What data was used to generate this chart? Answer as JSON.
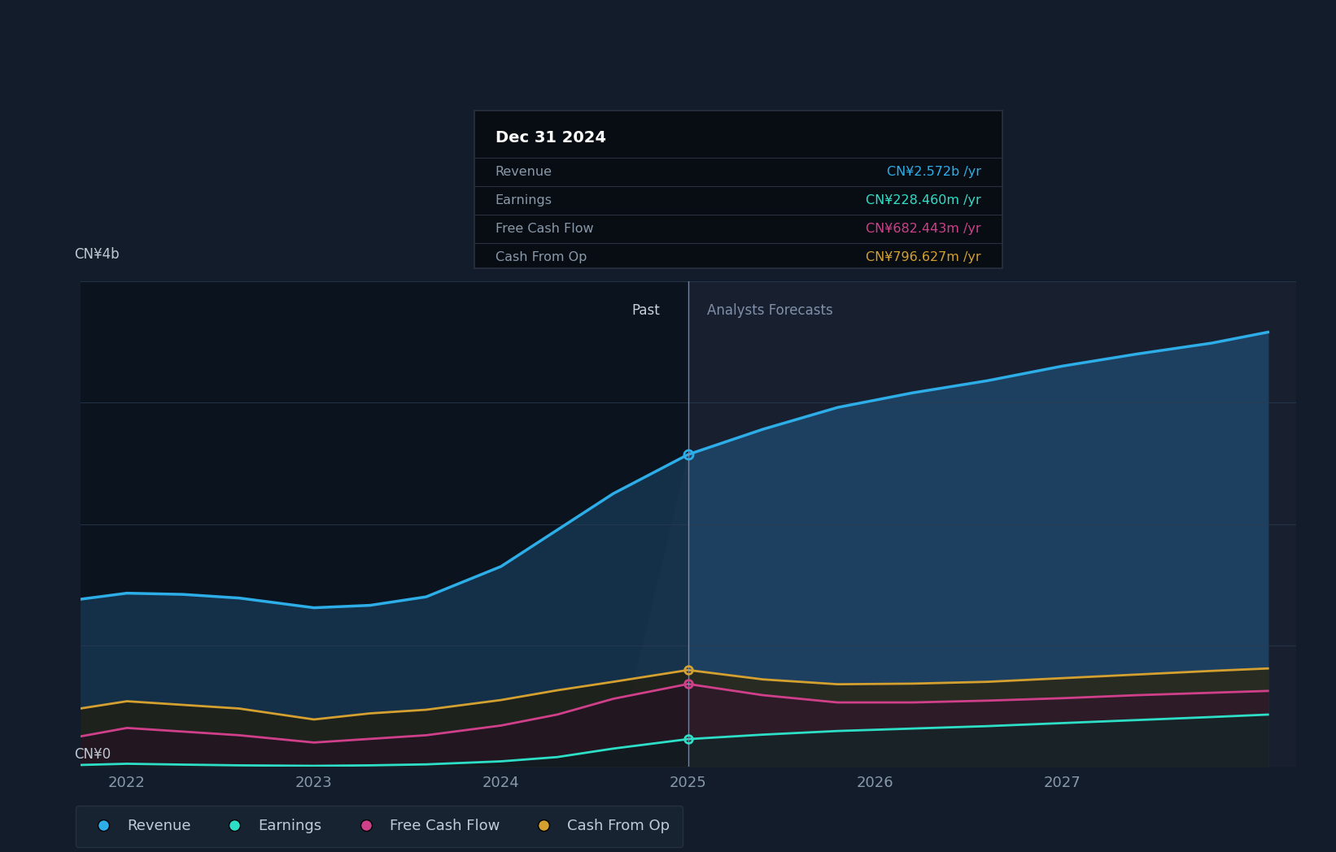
{
  "bg_color": "#131c2b",
  "plot_bg_color": "#182030",
  "past_bg_color": "#0e1824",
  "forecast_bg_color": "#182030",
  "grid_color": "#2a3a50",
  "ylabel_top": "CN¥4b",
  "ylabel_bottom": "CN¥0",
  "x_years": [
    2021.75,
    2022.0,
    2022.3,
    2022.6,
    2023.0,
    2023.3,
    2023.6,
    2024.0,
    2024.3,
    2024.6,
    2025.0,
    2025.4,
    2025.8,
    2026.2,
    2026.6,
    2027.0,
    2027.4,
    2027.8,
    2028.1
  ],
  "revenue": [
    1380,
    1430,
    1420,
    1390,
    1310,
    1330,
    1400,
    1650,
    1950,
    2250,
    2572,
    2780,
    2960,
    3080,
    3180,
    3300,
    3400,
    3490,
    3580
  ],
  "earnings": [
    15,
    25,
    18,
    12,
    8,
    12,
    20,
    45,
    80,
    150,
    228,
    265,
    295,
    315,
    335,
    360,
    385,
    410,
    430
  ],
  "free_cash_flow": [
    250,
    320,
    290,
    260,
    200,
    230,
    260,
    340,
    430,
    560,
    682,
    590,
    530,
    530,
    545,
    565,
    590,
    610,
    625
  ],
  "cash_from_op": [
    480,
    540,
    510,
    480,
    390,
    440,
    470,
    550,
    630,
    700,
    797,
    720,
    680,
    685,
    700,
    730,
    760,
    790,
    810
  ],
  "divider_x": 2025.0,
  "revenue_color": "#2daee8",
  "earnings_color": "#2edfc8",
  "fcf_color": "#d0408a",
  "cfop_color": "#d4a030",
  "revenue_fill_past": "#1a3d5c",
  "revenue_fill_forecast": "#1e4060",
  "earnings_fill": "#1a3040",
  "fcf_fill": "#3d1a30",
  "cfop_fill": "#2a2010",
  "ylim": [
    0,
    4000
  ],
  "xlim_left": 2021.75,
  "xlim_right": 2028.25,
  "x_ticks": [
    2022,
    2023,
    2024,
    2025,
    2026,
    2027
  ],
  "tooltip_title": "Dec 31 2024",
  "tooltip_revenue": "CN¥2.572b /yr",
  "tooltip_earnings": "CN¥228.460m /yr",
  "tooltip_fcf": "CN¥682.443m /yr",
  "tooltip_cfop": "CN¥796.627m /yr",
  "legend_items": [
    "Revenue",
    "Earnings",
    "Free Cash Flow",
    "Cash From Op"
  ],
  "legend_colors": [
    "#2daee8",
    "#2edfc8",
    "#d0408a",
    "#d4a030"
  ]
}
